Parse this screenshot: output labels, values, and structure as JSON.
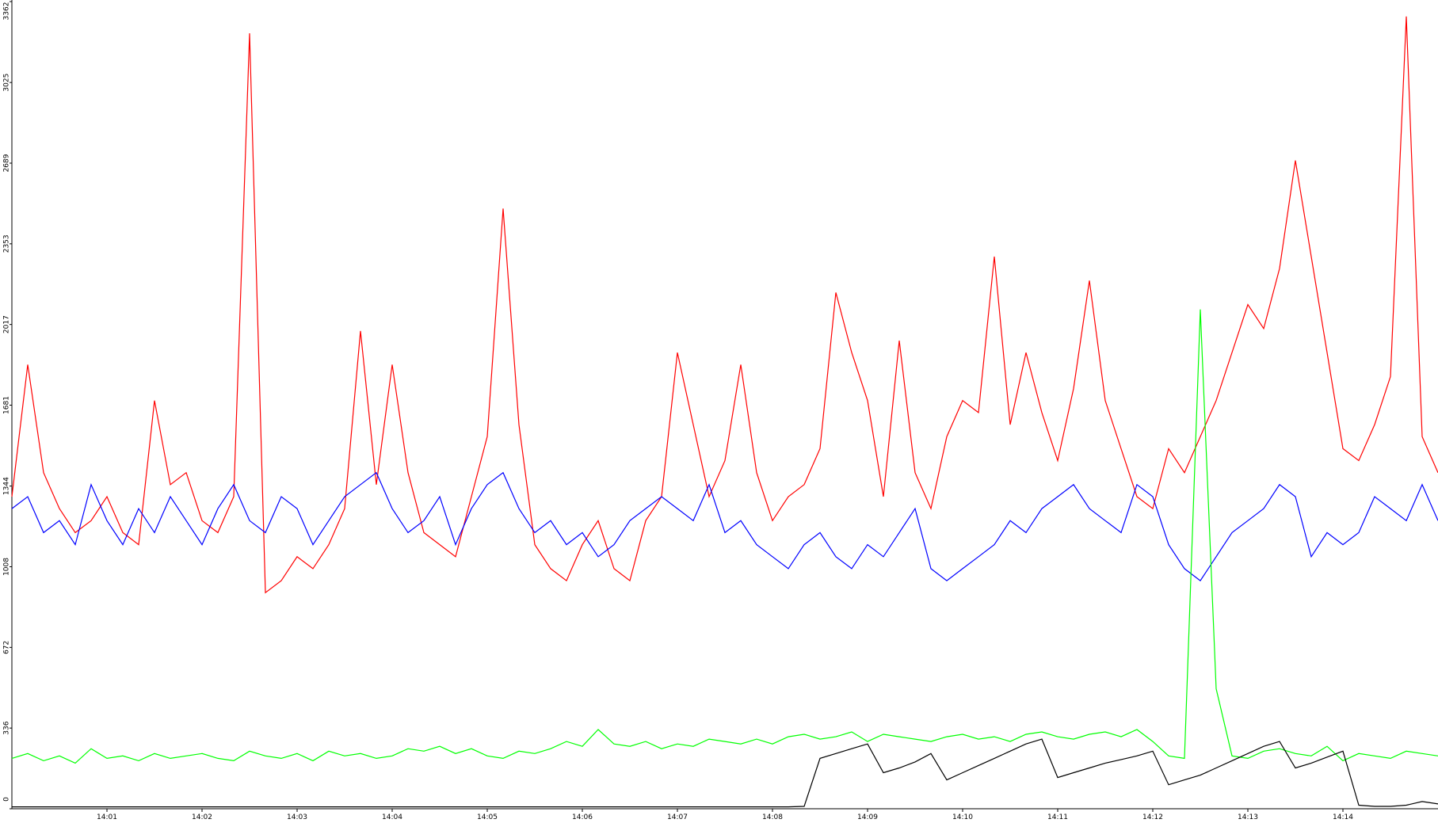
{
  "chart_data": {
    "type": "line",
    "categories": [
      null,
      null,
      null,
      null,
      null,
      null,
      "14:01",
      null,
      null,
      null,
      null,
      null,
      "14:02",
      null,
      null,
      null,
      null,
      null,
      "14:03",
      null,
      null,
      null,
      null,
      null,
      "14:04",
      null,
      null,
      null,
      null,
      null,
      "14:05",
      null,
      null,
      null,
      null,
      null,
      "14:06",
      null,
      null,
      null,
      null,
      null,
      "14:07",
      null,
      null,
      null,
      null,
      null,
      "14:08",
      null,
      null,
      null,
      null,
      null,
      "14:09",
      null,
      null,
      null,
      null,
      null,
      "14:10",
      null,
      null,
      null,
      null,
      null,
      "14:11",
      null,
      null,
      null,
      null,
      null,
      "14:12",
      null,
      null,
      null,
      null,
      null,
      "14:13",
      null,
      null,
      null,
      null,
      null,
      "14:14",
      null,
      null,
      null,
      null,
      null,
      null
    ],
    "ylim": [
      0,
      3362
    ],
    "yticks": [
      0,
      336,
      672,
      1008,
      1344,
      1681,
      2017,
      2353,
      2689,
      3025,
      3362
    ],
    "series": [
      {
        "color": "#ff0000",
        "values": [
          1300,
          1850,
          1400,
          1250,
          1150,
          1200,
          1300,
          1150,
          1100,
          1700,
          1350,
          1400,
          1200,
          1150,
          1300,
          3230,
          900,
          950,
          1050,
          1000,
          1100,
          1250,
          1990,
          1350,
          1850,
          1400,
          1150,
          1100,
          1050,
          1300,
          1550,
          2500,
          1600,
          1100,
          1000,
          950,
          1100,
          1200,
          1000,
          950,
          1200,
          1300,
          1900,
          1600,
          1300,
          1450,
          1850,
          1400,
          1200,
          1300,
          1350,
          1500,
          2150,
          1900,
          1700,
          1300,
          1950,
          1400,
          1250,
          1550,
          1700,
          1650,
          2300,
          1600,
          1900,
          1650,
          1450,
          1750,
          2200,
          1700,
          1500,
          1300,
          1250,
          1500,
          1400,
          1550,
          1700,
          1900,
          2100,
          2000,
          2250,
          2700,
          2300,
          1900,
          1500,
          1450,
          1600,
          1800,
          3300,
          1550,
          1400
        ]
      },
      {
        "color": "#0000ff",
        "values": [
          1250,
          1300,
          1150,
          1200,
          1100,
          1350,
          1200,
          1100,
          1250,
          1150,
          1300,
          1200,
          1100,
          1250,
          1350,
          1200,
          1150,
          1300,
          1250,
          1100,
          1200,
          1300,
          1350,
          1400,
          1250,
          1150,
          1200,
          1300,
          1100,
          1250,
          1350,
          1400,
          1250,
          1150,
          1200,
          1100,
          1150,
          1050,
          1100,
          1200,
          1250,
          1300,
          1250,
          1200,
          1350,
          1150,
          1200,
          1100,
          1050,
          1000,
          1100,
          1150,
          1050,
          1000,
          1100,
          1050,
          1150,
          1250,
          1000,
          950,
          1000,
          1050,
          1100,
          1200,
          1150,
          1250,
          1300,
          1350,
          1250,
          1200,
          1150,
          1350,
          1300,
          1100,
          1000,
          950,
          1050,
          1150,
          1200,
          1250,
          1350,
          1300,
          1050,
          1150,
          1100,
          1150,
          1300,
          1250,
          1200,
          1350,
          1200
        ]
      },
      {
        "color": "#00ff00",
        "values": [
          210,
          230,
          200,
          220,
          190,
          250,
          210,
          220,
          200,
          230,
          210,
          220,
          230,
          210,
          200,
          240,
          220,
          210,
          230,
          200,
          240,
          220,
          230,
          210,
          220,
          250,
          240,
          260,
          230,
          250,
          220,
          210,
          240,
          230,
          250,
          280,
          260,
          330,
          270,
          260,
          280,
          250,
          270,
          260,
          290,
          280,
          270,
          290,
          270,
          300,
          310,
          290,
          300,
          320,
          280,
          310,
          300,
          290,
          280,
          300,
          310,
          290,
          300,
          280,
          310,
          320,
          300,
          290,
          310,
          320,
          300,
          330,
          280,
          220,
          210,
          2080,
          500,
          220,
          210,
          240,
          250,
          230,
          220,
          260,
          200,
          230,
          220,
          210,
          240,
          230,
          220
        ]
      },
      {
        "color": "#000000",
        "values": [
          8,
          8,
          8,
          8,
          8,
          8,
          8,
          8,
          8,
          8,
          8,
          8,
          8,
          8,
          8,
          8,
          8,
          8,
          8,
          8,
          8,
          8,
          8,
          8,
          8,
          8,
          8,
          8,
          8,
          8,
          8,
          8,
          8,
          8,
          8,
          8,
          8,
          8,
          8,
          8,
          8,
          8,
          8,
          8,
          8,
          8,
          8,
          8,
          8,
          8,
          10,
          210,
          230,
          250,
          270,
          150,
          170,
          195,
          230,
          120,
          150,
          180,
          210,
          240,
          270,
          290,
          130,
          150,
          170,
          190,
          205,
          220,
          240,
          100,
          120,
          140,
          170,
          200,
          230,
          260,
          280,
          170,
          190,
          215,
          240,
          15,
          10,
          10,
          15,
          30,
          20
        ]
      }
    ]
  }
}
